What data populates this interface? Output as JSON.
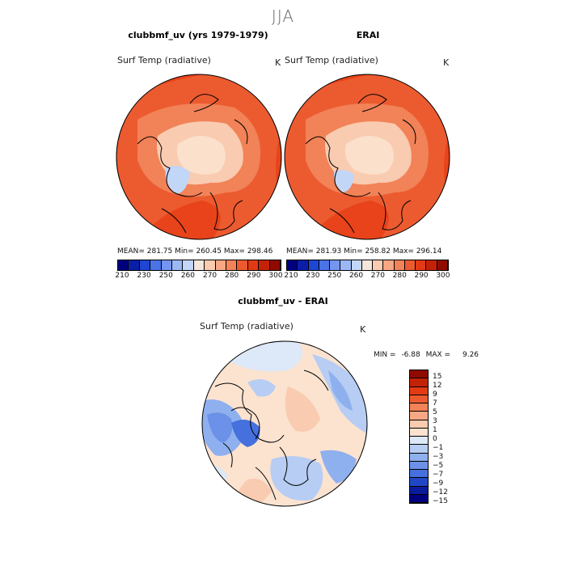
{
  "season": "JJA",
  "panels": [
    {
      "title": "clubbmf_uv (yrs 1979-1979)",
      "variable": "Surf Temp (radiative)",
      "unit": "K",
      "stats": "MEAN= 281.75   Min= 260.45   Max= 298.46"
    },
    {
      "title": "ERAI",
      "variable": "Surf Temp (radiative)",
      "unit": "K",
      "stats": "MEAN= 281.93   Min= 258.82   Max= 296.14"
    }
  ],
  "abs_colorbar": {
    "labels": [
      "210",
      "230",
      "250",
      "260",
      "270",
      "280",
      "290",
      "300"
    ],
    "colors": [
      "#00007f",
      "#0b1ea8",
      "#1e46d2",
      "#4b73e6",
      "#7496f0",
      "#9bb8f4",
      "#c2d6f7",
      "#f4e6dc",
      "#f9cbb0",
      "#f7a783",
      "#f28257",
      "#ec5b30",
      "#e23b14",
      "#c42206",
      "#8f0b00"
    ]
  },
  "diff_panel": {
    "title": "clubbmf_uv - ERAI",
    "variable": "Surf Temp (radiative)",
    "unit": "K",
    "min_label": "MIN =",
    "min_value": "-6.88",
    "max_label": "MAX =",
    "max_value": "9.26"
  },
  "diff_colorbar": {
    "labels": [
      "15",
      "12",
      "9",
      "7",
      "5",
      "3",
      "1",
      "0",
      "−1",
      "−3",
      "−5",
      "−7",
      "−9",
      "−12",
      "−15"
    ],
    "colors": [
      "#8f0b00",
      "#c42206",
      "#e23b14",
      "#ec5b30",
      "#f28257",
      "#f7a783",
      "#f9cbb0",
      "#fbe3d0",
      "#dde8f8",
      "#b7cdf3",
      "#8fb0ee",
      "#6b91e8",
      "#4570de",
      "#2048c6",
      "#0a1c9c",
      "#00007f"
    ]
  }
}
